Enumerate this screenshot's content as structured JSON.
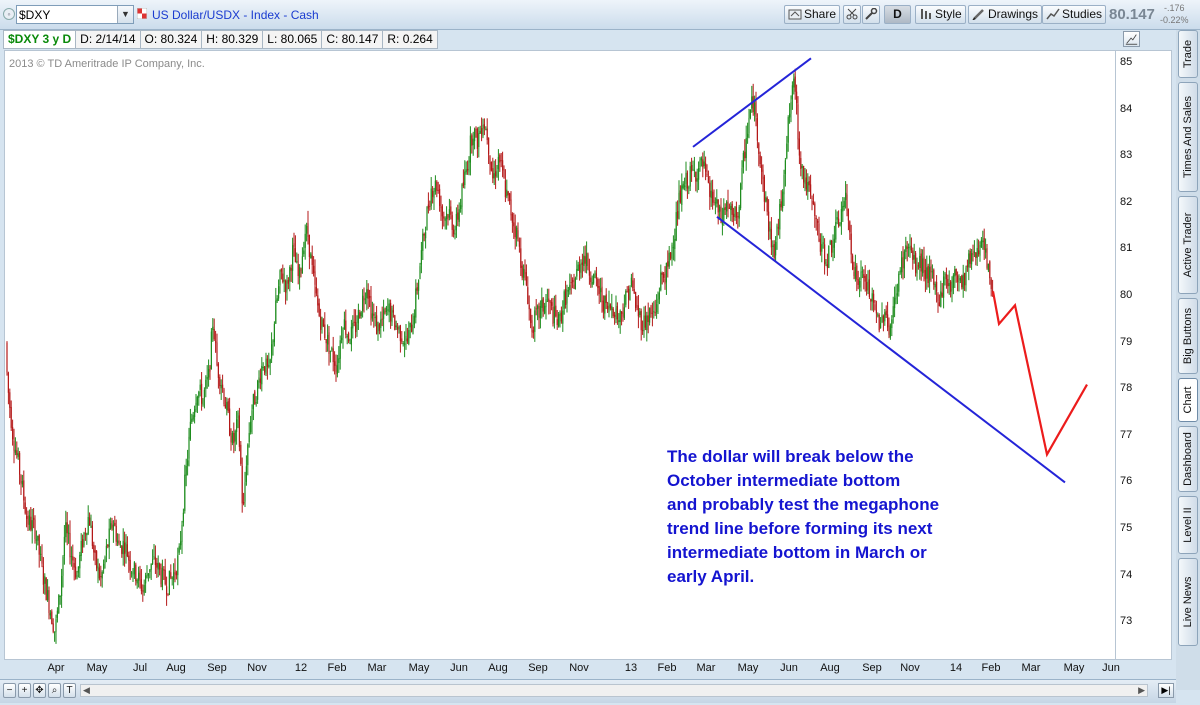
{
  "toolbar": {
    "symbol": "$DXY",
    "title": "US Dollar/USDX - Index - Cash",
    "share_label": "Share",
    "d_label": "D",
    "style_label": "Style",
    "drawings_label": "Drawings",
    "studies_label": "Studies",
    "price": "80.147",
    "change": "-.176",
    "change_pct": "-0.22%"
  },
  "infobar": {
    "symbol_period": "$DXY 3 y D",
    "date": "D: 2/14/14",
    "open": "O: 80.324",
    "high": "H: 80.329",
    "low": "L: 80.065",
    "close": "C: 80.147",
    "range": "R: 0.264"
  },
  "chart": {
    "copyright": "2013 © TD Ameritrade IP Company, Inc.",
    "annotation_lines": [
      "The dollar will break below the",
      "October intermediate bottom",
      "and probably test the megaphone",
      "trend line before forming its next",
      "intermediate bottom in March or",
      "early April."
    ]
  },
  "side_tabs": [
    "Trade",
    "Times And Sales",
    "Active Trader",
    "Big Buttons",
    "Chart",
    "Dashboard",
    "Level II",
    "Live News"
  ],
  "colors": {
    "up_candle": "#1e8c1e",
    "down_candle": "#b41818",
    "trendline": "#2424d8",
    "projection": "#ec1c1c",
    "annotation": "#1414d0"
  },
  "chart_data": {
    "type": "candlestick",
    "title": "US Dollar/USDX - Index - Cash",
    "x_tick_labels": [
      "Apr",
      "May",
      "Jul",
      "Aug",
      "Sep",
      "Nov",
      "12",
      "Feb",
      "Mar",
      "May",
      "Jun",
      "Aug",
      "Sep",
      "Nov",
      "13",
      "Feb",
      "Mar",
      "May",
      "Jun",
      "Aug",
      "Sep",
      "Nov",
      "14",
      "Feb",
      "Mar",
      "May",
      "Jun"
    ],
    "y_ticks": [
      73,
      74,
      75,
      76,
      77,
      78,
      79,
      80,
      81,
      82,
      83,
      84,
      85
    ],
    "ylim": [
      72.3,
      85.3
    ],
    "path_points": [
      [
        0,
        79.0
      ],
      [
        3,
        78.0
      ],
      [
        8,
        77.0
      ],
      [
        15,
        76.2
      ],
      [
        22,
        75.2
      ],
      [
        30,
        75.0
      ],
      [
        38,
        74.0
      ],
      [
        45,
        73.3
      ],
      [
        50,
        72.8
      ],
      [
        55,
        73.6
      ],
      [
        60,
        75.0
      ],
      [
        66,
        74.5
      ],
      [
        72,
        74.0
      ],
      [
        78,
        74.8
      ],
      [
        84,
        75.3
      ],
      [
        90,
        74.3
      ],
      [
        96,
        73.9
      ],
      [
        102,
        74.6
      ],
      [
        108,
        75.2
      ],
      [
        114,
        74.6
      ],
      [
        120,
        74.7
      ],
      [
        126,
        74.2
      ],
      [
        132,
        74.0
      ],
      [
        138,
        73.7
      ],
      [
        144,
        74.2
      ],
      [
        150,
        74.3
      ],
      [
        156,
        74.0
      ],
      [
        162,
        73.8
      ],
      [
        168,
        74.0
      ],
      [
        174,
        74.4
      ],
      [
        180,
        76.0
      ],
      [
        186,
        77.3
      ],
      [
        192,
        78.0
      ],
      [
        198,
        77.8
      ],
      [
        204,
        78.3
      ],
      [
        208,
        79.5
      ],
      [
        212,
        78.5
      ],
      [
        216,
        78.2
      ],
      [
        222,
        77.5
      ],
      [
        228,
        76.8
      ],
      [
        233,
        77.3
      ],
      [
        236,
        76.3
      ],
      [
        238,
        75.2
      ],
      [
        241,
        76.4
      ],
      [
        246,
        77.5
      ],
      [
        252,
        78.0
      ],
      [
        258,
        78.6
      ],
      [
        264,
        78.3
      ],
      [
        270,
        79.6
      ],
      [
        276,
        80.5
      ],
      [
        282,
        80.2
      ],
      [
        288,
        81.0
      ],
      [
        294,
        80.3
      ],
      [
        300,
        81.4
      ],
      [
        303,
        81.3
      ],
      [
        308,
        80.4
      ],
      [
        314,
        79.6
      ],
      [
        320,
        79.2
      ],
      [
        326,
        78.8
      ],
      [
        332,
        78.5
      ],
      [
        338,
        79.5
      ],
      [
        344,
        79.1
      ],
      [
        350,
        79.3
      ],
      [
        356,
        79.8
      ],
      [
        362,
        80.3
      ],
      [
        366,
        79.7
      ],
      [
        372,
        79.3
      ],
      [
        378,
        79.5
      ],
      [
        384,
        79.7
      ],
      [
        390,
        79.4
      ],
      [
        396,
        79.2
      ],
      [
        402,
        79.0
      ],
      [
        408,
        79.5
      ],
      [
        414,
        80.5
      ],
      [
        420,
        81.5
      ],
      [
        426,
        82.3
      ],
      [
        432,
        82.4
      ],
      [
        438,
        81.7
      ],
      [
        444,
        81.8
      ],
      [
        450,
        81.4
      ],
      [
        456,
        82.1
      ],
      [
        462,
        82.8
      ],
      [
        468,
        83.6
      ],
      [
        472,
        83.3
      ],
      [
        478,
        83.8
      ],
      [
        482,
        83.5
      ],
      [
        488,
        82.5
      ],
      [
        494,
        83.0
      ],
      [
        500,
        82.3
      ],
      [
        506,
        81.8
      ],
      [
        512,
        81.3
      ],
      [
        518,
        80.5
      ],
      [
        522,
        80.2
      ],
      [
        526,
        79.3
      ],
      [
        530,
        79.5
      ],
      [
        536,
        79.7
      ],
      [
        542,
        79.9
      ],
      [
        548,
        79.6
      ],
      [
        554,
        79.4
      ],
      [
        560,
        80.0
      ],
      [
        566,
        80.1
      ],
      [
        572,
        80.5
      ],
      [
        578,
        80.9
      ],
      [
        584,
        80.6
      ],
      [
        590,
        80.3
      ],
      [
        596,
        80.0
      ],
      [
        602,
        79.7
      ],
      [
        608,
        79.8
      ],
      [
        614,
        79.5
      ],
      [
        620,
        79.9
      ],
      [
        626,
        80.3
      ],
      [
        632,
        79.7
      ],
      [
        638,
        79.4
      ],
      [
        644,
        79.6
      ],
      [
        650,
        79.6
      ],
      [
        656,
        80.4
      ],
      [
        662,
        80.5
      ],
      [
        668,
        81.2
      ],
      [
        674,
        82.0
      ],
      [
        680,
        82.4
      ],
      [
        686,
        82.6
      ],
      [
        692,
        82.7
      ],
      [
        698,
        82.8
      ],
      [
        704,
        82.2
      ],
      [
        710,
        82.0
      ],
      [
        716,
        81.6
      ],
      [
        722,
        82.0
      ],
      [
        728,
        81.6
      ],
      [
        734,
        81.9
      ],
      [
        740,
        83.2
      ],
      [
        744,
        83.8
      ],
      [
        748,
        84.2
      ],
      [
        752,
        83.6
      ],
      [
        758,
        82.4
      ],
      [
        764,
        81.5
      ],
      [
        768,
        80.9
      ],
      [
        772,
        81.3
      ],
      [
        776,
        82.0
      ],
      [
        780,
        83.0
      ],
      [
        786,
        84.2
      ],
      [
        790,
        84.6
      ],
      [
        794,
        83.2
      ],
      [
        798,
        82.6
      ],
      [
        804,
        82.2
      ],
      [
        810,
        81.7
      ],
      [
        816,
        81.0
      ],
      [
        822,
        80.8
      ],
      [
        828,
        81.2
      ],
      [
        834,
        81.6
      ],
      [
        840,
        82.1
      ],
      [
        844,
        81.5
      ],
      [
        848,
        80.7
      ],
      [
        852,
        80.3
      ],
      [
        858,
        80.4
      ],
      [
        864,
        80.1
      ],
      [
        870,
        79.6
      ],
      [
        876,
        79.4
      ],
      [
        880,
        79.8
      ],
      [
        884,
        79.2
      ],
      [
        888,
        79.6
      ],
      [
        892,
        80.2
      ],
      [
        898,
        80.8
      ],
      [
        904,
        81.1
      ],
      [
        910,
        80.6
      ],
      [
        916,
        80.7
      ],
      [
        922,
        80.5
      ],
      [
        928,
        80.3
      ],
      [
        934,
        79.9
      ],
      [
        940,
        80.4
      ],
      [
        946,
        80.2
      ],
      [
        952,
        80.5
      ],
      [
        958,
        80.3
      ],
      [
        964,
        80.8
      ],
      [
        970,
        81.0
      ],
      [
        976,
        81.1
      ],
      [
        980,
        80.9
      ],
      [
        984,
        80.4
      ],
      [
        988,
        80.1
      ]
    ],
    "upper_trendline": [
      [
        688,
        83.2
      ],
      [
        806,
        85.1
      ]
    ],
    "lower_trendline": [
      [
        712,
        81.7
      ],
      [
        1060,
        76.0
      ]
    ],
    "projection": [
      [
        988,
        80.1
      ],
      [
        994,
        79.4
      ],
      [
        1010,
        79.8
      ],
      [
        1042,
        76.6
      ],
      [
        1082,
        78.1
      ]
    ]
  }
}
